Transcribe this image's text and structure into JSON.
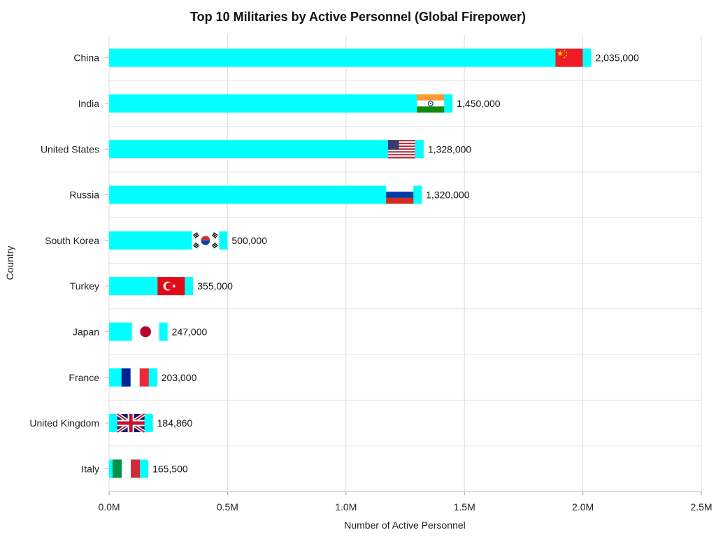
{
  "chart_data": {
    "type": "bar",
    "orientation": "horizontal",
    "title": "Top 10 Militaries by Active Personnel (Global Firepower)",
    "xlabel": "Number of Active Personnel",
    "ylabel": "Country",
    "xlim": [
      0,
      2500000
    ],
    "x_ticks": [
      0,
      500000,
      1000000,
      1500000,
      2000000,
      2500000
    ],
    "x_tick_labels": [
      "0.0M",
      "0.5M",
      "1.0M",
      "1.5M",
      "2.0M",
      "2.5M"
    ],
    "categories": [
      "China",
      "India",
      "United States",
      "Russia",
      "South Korea",
      "Turkey",
      "Japan",
      "France",
      "United Kingdom",
      "Italy"
    ],
    "values": [
      2035000,
      1450000,
      1328000,
      1320000,
      500000,
      355000,
      247000,
      203000,
      184860,
      165500
    ],
    "value_labels": [
      "2,035,000",
      "1,450,000",
      "1,328,000",
      "1,320,000",
      "500,000",
      "355,000",
      "247,000",
      "203,000",
      "184,860",
      "165,500"
    ],
    "flag_icons": [
      "china-flag-icon",
      "india-flag-icon",
      "usa-flag-icon",
      "russia-flag-icon",
      "south-korea-flag-icon",
      "turkey-flag-icon",
      "japan-flag-icon",
      "france-flag-icon",
      "uk-flag-icon",
      "italy-flag-icon"
    ],
    "bar_color": "#00FFFF",
    "grid": true,
    "legend": false
  }
}
